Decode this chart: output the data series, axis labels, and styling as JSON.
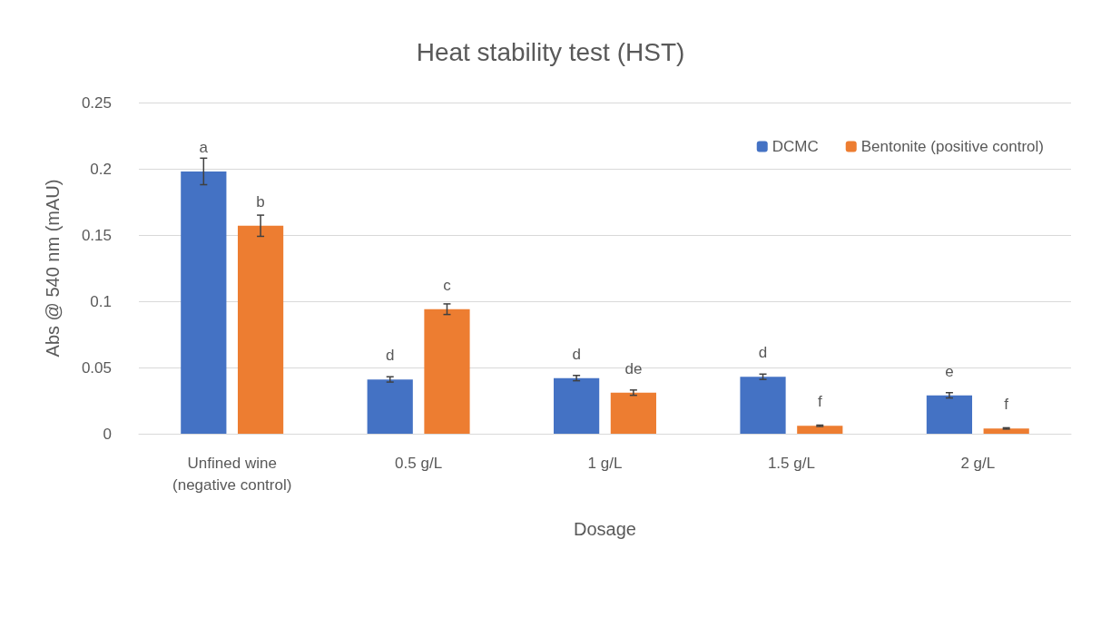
{
  "chart_data": {
    "type": "bar",
    "title": "Heat stability test (HST)",
    "xlabel": "Dosage",
    "ylabel": "Abs @ 540 nm (mAU)",
    "categories": [
      "Unfined wine\n(negative control)",
      "0.5 g/L",
      "1 g/L",
      "1.5 g/L",
      "2 g/L"
    ],
    "series": [
      {
        "name": "DCMC",
        "color": "#4472c4",
        "values": [
          0.198,
          0.041,
          0.042,
          0.043,
          0.029
        ],
        "errors": [
          0.01,
          0.002,
          0.002,
          0.002,
          0.002
        ],
        "value_labels": [
          "a",
          "d",
          "d",
          "d",
          "e"
        ]
      },
      {
        "name": "Bentonite (positive control)",
        "color": "#ed7d31",
        "values": [
          0.157,
          0.094,
          0.031,
          0.006,
          0.004
        ],
        "errors": [
          0.008,
          0.004,
          0.002,
          0.0005,
          0.0005
        ],
        "value_labels": [
          "b",
          "c",
          "de",
          "f",
          "f"
        ]
      }
    ],
    "ylim": [
      0,
      0.25
    ],
    "yticks": [
      0,
      0.05,
      0.1,
      0.15,
      0.2,
      0.25
    ],
    "grid": "y",
    "legend": "top right"
  }
}
